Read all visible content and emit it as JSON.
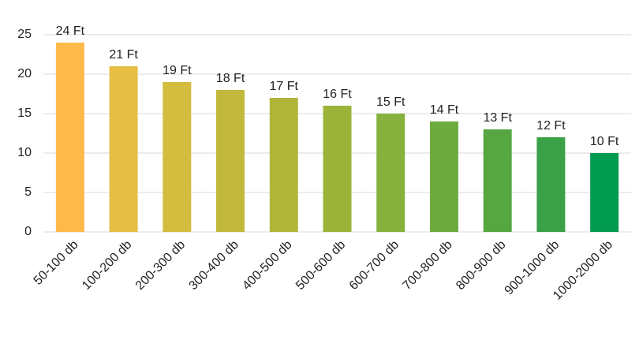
{
  "chart_data": {
    "type": "bar",
    "categories": [
      "50-100 db",
      "100-200 db",
      "200-300 db",
      "300-400 db",
      "400-500 db",
      "500-600 db",
      "600-700 db",
      "700-800 db",
      "800-900 db",
      "900-1000 db",
      "1000-2000 db"
    ],
    "values": [
      24,
      21,
      19,
      18,
      17,
      16,
      15,
      14,
      13,
      12,
      10
    ],
    "value_labels": [
      "24 Ft",
      "21 Ft",
      "19 Ft",
      "18 Ft",
      "17 Ft",
      "16 Ft",
      "15 Ft",
      "14 Ft",
      "13 Ft",
      "12 Ft",
      "10 Ft"
    ],
    "colors": [
      "#FDBA4A",
      "#E6BE44",
      "#D4BC3E",
      "#C2B83B",
      "#AFB63A",
      "#9CB33A",
      "#86B13C",
      "#6EAB3F",
      "#56A742",
      "#3AA148",
      "#009B50"
    ],
    "ylim": [
      0,
      25
    ],
    "yticks": [
      0,
      5,
      10,
      15,
      20,
      25
    ],
    "grid": true
  }
}
